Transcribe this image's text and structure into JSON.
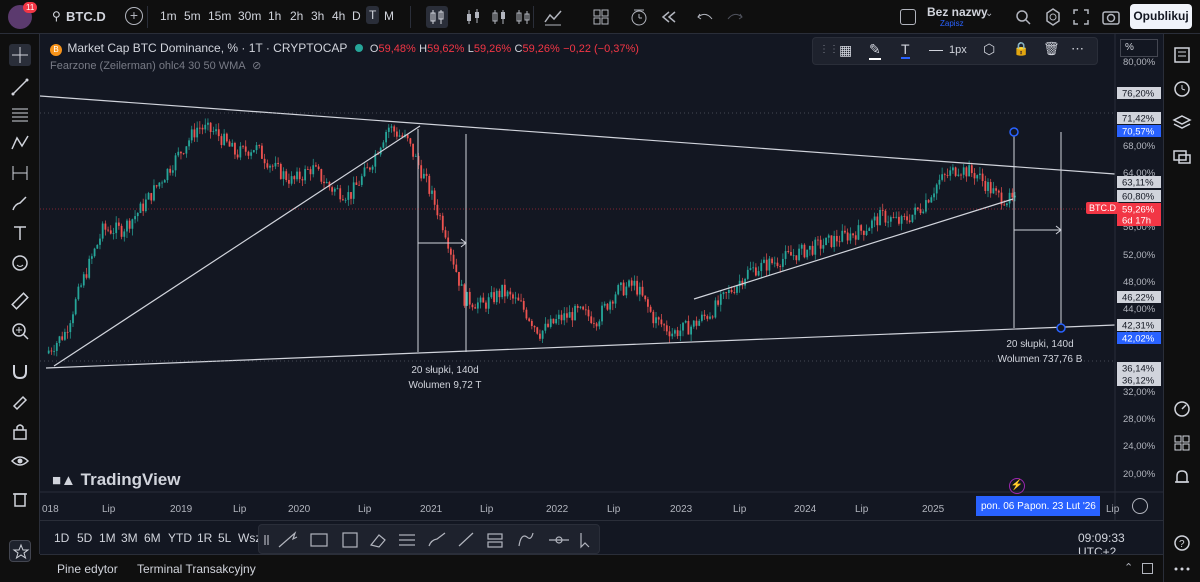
{
  "topbar": {
    "notif_count": "11",
    "symbol": "BTC.D",
    "timeframes": [
      "1m",
      "5m",
      "15m",
      "30m",
      "1h",
      "2h",
      "3h",
      "4h",
      "D",
      "T",
      "M"
    ],
    "active_timeframe": "T",
    "layout_name": "Bez nazwy",
    "layout_status": "Zapisz",
    "publish": "Opublikuj"
  },
  "legend": {
    "title": "Market Cap BTC Dominance, % · 1T · CRYPTOCAP",
    "o_label": "O",
    "o": "59,48%",
    "h_label": "H",
    "h": "59,62%",
    "l_label": "L",
    "l": "59,26%",
    "c_label": "C",
    "c": "59,26%",
    "change": "−0,22 (−0,37%)",
    "indicator": "Fearzone (Zeilerman) ohlc4 30 50 WMA"
  },
  "drawing_toolbar": {
    "width_label": "1px"
  },
  "price_axis": {
    "unit": "%",
    "ticks": [
      "80,00%",
      "68,00%",
      "64,00%",
      "56,00%",
      "52,00%",
      "48,00%",
      "44,00%",
      "40,00%",
      "32,00%",
      "28,00%",
      "24,00%",
      "20,00%"
    ],
    "badges": [
      {
        "text": "76,20%",
        "style": "white"
      },
      {
        "text": "71,42%",
        "style": "white"
      },
      {
        "text": "70,57%",
        "style": "blue"
      },
      {
        "text": "63,11%",
        "style": "white"
      },
      {
        "text": "60,80%",
        "style": "white"
      },
      {
        "text": "59,26%",
        "style": "red"
      },
      {
        "text": "6d 17h",
        "style": "red"
      },
      {
        "text": "46,22%",
        "style": "white"
      },
      {
        "text": "42,31%",
        "style": "white"
      },
      {
        "text": "42,02%",
        "style": "blue"
      },
      {
        "text": "36,14%",
        "style": "white"
      },
      {
        "text": "36,12%",
        "style": "white"
      }
    ],
    "symbol_tag": "BTC.D"
  },
  "time_axis": {
    "labels": [
      "018",
      "Lip",
      "2019",
      "Lip",
      "2020",
      "Lip",
      "2021",
      "Lip",
      "2022",
      "Lip",
      "2023",
      "Lip",
      "2024",
      "Lip",
      "2025",
      "Lip"
    ],
    "range_start": "pon. 06 Pa",
    "range_end": "pon. 23 Lut '26"
  },
  "measurements": [
    {
      "bars": "20 słupki, 140d",
      "volume": "Wolumen 9,72 T"
    },
    {
      "bars": "20 słupki, 140d",
      "volume": "Wolumen 737,76 B"
    }
  ],
  "watermark": "TradingView",
  "range_buttons": [
    "1D",
    "5D",
    "1M",
    "3M",
    "6M",
    "YTD",
    "1R",
    "5L",
    "Wsz"
  ],
  "clock": "09:09:33 UTC+2",
  "bottom_tabs": [
    "Pine edytor",
    "Terminal Transakcyjny"
  ],
  "colors": {
    "bg": "#131722",
    "up": "#26a69a",
    "down": "#ef5350",
    "accent_blue": "#2962ff",
    "price_red": "#f23645"
  },
  "chart_data": {
    "type": "candlestick",
    "series": [
      {
        "name": "Market Cap BTC Dominance, %",
        "ohlc_last": {
          "o": 59.48,
          "h": 59.62,
          "l": 59.26,
          "c": 59.26
        }
      }
    ],
    "ylim": [
      18,
      82
    ],
    "close_path": [
      {
        "t": 0,
        "v": 37
      },
      {
        "t": 2,
        "v": 40
      },
      {
        "t": 4,
        "v": 48
      },
      {
        "t": 6,
        "v": 55
      },
      {
        "t": 8,
        "v": 55
      },
      {
        "t": 10,
        "v": 58
      },
      {
        "t": 12,
        "v": 62
      },
      {
        "t": 14,
        "v": 66
      },
      {
        "t": 16,
        "v": 70
      },
      {
        "t": 18,
        "v": 69
      },
      {
        "t": 20,
        "v": 66
      },
      {
        "t": 22,
        "v": 67
      },
      {
        "t": 24,
        "v": 64
      },
      {
        "t": 26,
        "v": 62
      },
      {
        "t": 28,
        "v": 64
      },
      {
        "t": 30,
        "v": 61
      },
      {
        "t": 32,
        "v": 60
      },
      {
        "t": 34,
        "v": 64
      },
      {
        "t": 36,
        "v": 70
      },
      {
        "t": 38,
        "v": 68
      },
      {
        "t": 40,
        "v": 62
      },
      {
        "t": 42,
        "v": 55
      },
      {
        "t": 44,
        "v": 45
      },
      {
        "t": 46,
        "v": 44
      },
      {
        "t": 48,
        "v": 46
      },
      {
        "t": 50,
        "v": 44
      },
      {
        "t": 52,
        "v": 40
      },
      {
        "t": 54,
        "v": 42
      },
      {
        "t": 56,
        "v": 43
      },
      {
        "t": 58,
        "v": 42
      },
      {
        "t": 60,
        "v": 46
      },
      {
        "t": 62,
        "v": 47
      },
      {
        "t": 64,
        "v": 42
      },
      {
        "t": 66,
        "v": 40
      },
      {
        "t": 68,
        "v": 41
      },
      {
        "t": 70,
        "v": 43
      },
      {
        "t": 72,
        "v": 46
      },
      {
        "t": 74,
        "v": 49
      },
      {
        "t": 76,
        "v": 50
      },
      {
        "t": 78,
        "v": 51
      },
      {
        "t": 80,
        "v": 52
      },
      {
        "t": 82,
        "v": 53
      },
      {
        "t": 84,
        "v": 54
      },
      {
        "t": 86,
        "v": 55
      },
      {
        "t": 88,
        "v": 57
      },
      {
        "t": 90,
        "v": 56
      },
      {
        "t": 92,
        "v": 58
      },
      {
        "t": 94,
        "v": 62
      },
      {
        "t": 96,
        "v": 64
      },
      {
        "t": 98,
        "v": 63
      },
      {
        "t": 100,
        "v": 60
      },
      {
        "t": 102,
        "v": 59
      }
    ]
  }
}
